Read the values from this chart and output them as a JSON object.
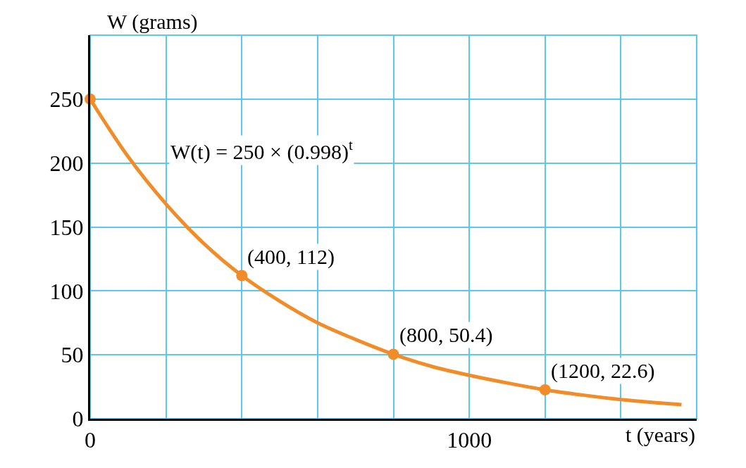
{
  "chart_data": {
    "type": "line",
    "xlabel": "t (years)",
    "ylabel": "W (grams)",
    "xlim": [
      0,
      1600
    ],
    "xticks": [
      0,
      {
        "value": 200,
        "label": null
      },
      {
        "value": 400,
        "label": null
      },
      {
        "value": 600,
        "label": null
      },
      {
        "value": 800,
        "label": null
      },
      1000,
      {
        "value": 1200,
        "label": null
      },
      {
        "value": 1400,
        "label": null
      },
      {
        "value": 1600,
        "label": null
      }
    ],
    "ylim": [
      0,
      300
    ],
    "yticks": [
      0,
      50,
      100,
      150,
      200,
      250,
      {
        "value": 300,
        "label": null
      }
    ],
    "grid": true,
    "series": [
      {
        "marker": "none",
        "color": "#f28c28",
        "x": [
          0,
          100,
          200,
          300,
          400,
          500,
          600,
          700,
          800,
          900,
          1000,
          1100,
          1200,
          1300,
          1400,
          1500,
          1560
        ],
        "values": [
          250,
          205,
          168,
          137,
          112,
          92,
          75,
          62,
          50.4,
          41,
          34,
          28,
          22.6,
          18.5,
          15,
          12.4,
          11
        ]
      },
      {
        "type": "scatter",
        "marker": "circle",
        "color": "#f28c28",
        "x": [
          0,
          400,
          800,
          1200
        ],
        "values": [
          250,
          112,
          50.4,
          22.6
        ]
      }
    ],
    "annotations": [
      "W(t) = 250 × (0.998)$^{t}$",
      {
        "text": "(400, 112)",
        "x": 400,
        "y": 112
      },
      {
        "text": "(800, 50.4)",
        "x": 800,
        "y": 50.4
      },
      {
        "text": "(1200, 22.6)",
        "x": 1200,
        "y": 22.6
      }
    ]
  }
}
